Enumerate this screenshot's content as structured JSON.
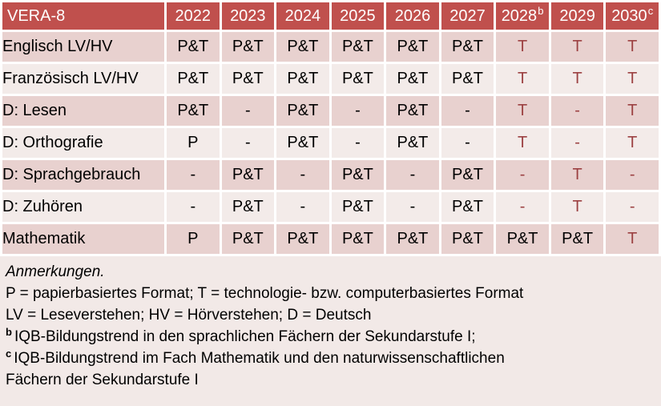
{
  "colors": {
    "header_bg": "#c0504d",
    "header_text": "#ffffff",
    "band_dark": "#e8d1cf",
    "band_light": "#f3ebe9",
    "notes_bg": "#f2e9e7",
    "accent_red": "#9c4142",
    "body_text": "#000000"
  },
  "table": {
    "header": {
      "title": "VERA-8",
      "columns": [
        {
          "label": "2022",
          "sup": ""
        },
        {
          "label": "2023",
          "sup": ""
        },
        {
          "label": "2024",
          "sup": ""
        },
        {
          "label": "2025",
          "sup": ""
        },
        {
          "label": "2026",
          "sup": ""
        },
        {
          "label": "2027",
          "sup": ""
        },
        {
          "label": "2028",
          "sup": "b"
        },
        {
          "label": "2029",
          "sup": ""
        },
        {
          "label": "2030",
          "sup": "c"
        }
      ]
    },
    "rows": [
      {
        "label": "Englisch LV/HV",
        "cells": [
          {
            "t": "P&T"
          },
          {
            "t": "P&T"
          },
          {
            "t": "P&T"
          },
          {
            "t": "P&T"
          },
          {
            "t": "P&T"
          },
          {
            "t": "P&T"
          },
          {
            "t": "T",
            "red": true
          },
          {
            "t": "T",
            "red": true
          },
          {
            "t": "T",
            "red": true
          }
        ]
      },
      {
        "label": "Französisch LV/HV",
        "cells": [
          {
            "t": "P&T"
          },
          {
            "t": "P&T"
          },
          {
            "t": "P&T"
          },
          {
            "t": "P&T"
          },
          {
            "t": "P&T"
          },
          {
            "t": "P&T"
          },
          {
            "t": "T",
            "red": true
          },
          {
            "t": "T",
            "red": true
          },
          {
            "t": "T",
            "red": true
          }
        ]
      },
      {
        "label": "D: Lesen",
        "cells": [
          {
            "t": "P&T"
          },
          {
            "t": "-"
          },
          {
            "t": "P&T"
          },
          {
            "t": "-"
          },
          {
            "t": "P&T"
          },
          {
            "t": "-"
          },
          {
            "t": "T",
            "red": true
          },
          {
            "t": "-",
            "red": true
          },
          {
            "t": "T",
            "red": true
          }
        ]
      },
      {
        "label": "D: Orthografie",
        "cells": [
          {
            "t": "P"
          },
          {
            "t": "-"
          },
          {
            "t": "P&T"
          },
          {
            "t": "-"
          },
          {
            "t": "P&T"
          },
          {
            "t": "-"
          },
          {
            "t": "T",
            "red": true
          },
          {
            "t": "-",
            "red": true
          },
          {
            "t": "T",
            "red": true
          }
        ]
      },
      {
        "label": "D: Sprachgebrauch",
        "cells": [
          {
            "t": "-"
          },
          {
            "t": "P&T"
          },
          {
            "t": "-"
          },
          {
            "t": "P&T"
          },
          {
            "t": "-"
          },
          {
            "t": "P&T"
          },
          {
            "t": "-",
            "red": true
          },
          {
            "t": "T",
            "red": true
          },
          {
            "t": "-",
            "red": true
          }
        ]
      },
      {
        "label": "D: Zuhören",
        "cells": [
          {
            "t": "-"
          },
          {
            "t": "P&T"
          },
          {
            "t": "-"
          },
          {
            "t": "P&T"
          },
          {
            "t": "-"
          },
          {
            "t": "P&T"
          },
          {
            "t": "-",
            "red": true
          },
          {
            "t": "T",
            "red": true
          },
          {
            "t": "-",
            "red": true
          }
        ]
      },
      {
        "label": "Mathematik",
        "cells": [
          {
            "t": "P"
          },
          {
            "t": "P&T"
          },
          {
            "t": "P&T"
          },
          {
            "t": "P&T"
          },
          {
            "t": "P&T"
          },
          {
            "t": "P&T"
          },
          {
            "t": "P&T"
          },
          {
            "t": "P&T"
          },
          {
            "t": "T",
            "red": true
          }
        ]
      }
    ]
  },
  "notes": {
    "title": "Anmerkungen.",
    "format_legend": "P = papierbasiertes Format; T = technologie- bzw. computerbasiertes Format",
    "abbreviation_legend": "LV = Leseverstehen; HV = Hörverstehen; D = Deutsch",
    "footnote_b": {
      "marker": "b",
      "text": "IQB-Bildungstrend in den sprachlichen Fächern der Sekundarstufe I;"
    },
    "footnote_c": {
      "marker": "c",
      "text": "IQB-Bildungstrend im Fach Mathematik und den naturwissenschaftlichen\nFächern der Sekundarstufe I"
    }
  }
}
